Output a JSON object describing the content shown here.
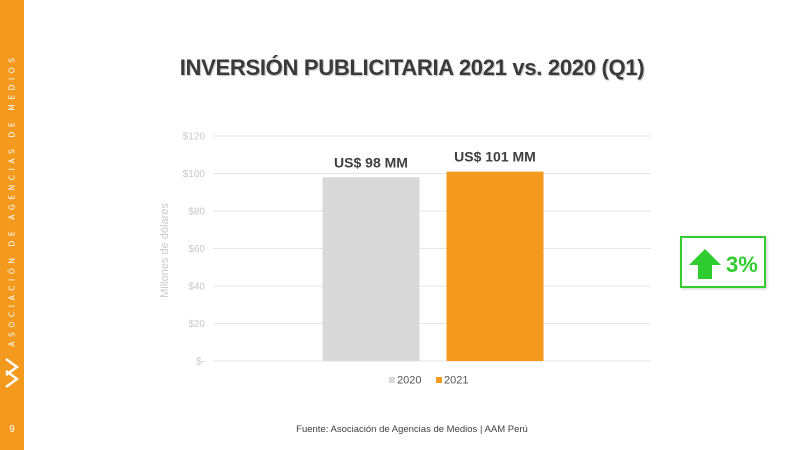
{
  "sidebar": {
    "org_name": "ASOCIACIÓN DE AGENCIAS DE MEDIOS",
    "page_number": "9",
    "logo_icon": "aam-chevron-logo-icon"
  },
  "colors": {
    "brand_orange": "#f39a1e",
    "bar_2020": "#d9d9d9",
    "bar_2021": "#f39a1e",
    "growth_green": "#2ecc2e"
  },
  "growth": {
    "value": "3%",
    "icon": "arrow-up-icon"
  },
  "source": "Fuente: Asociación de Agencias de Medios | AAM Perú",
  "chart_data": {
    "type": "bar",
    "title": "INVERSIÓN PUBLICITARIA 2021 vs. 2020 (Q1)",
    "ylabel": "Millones de dólares",
    "xlabel": "",
    "ylim": [
      0,
      120
    ],
    "yticks": [
      0,
      20,
      40,
      60,
      80,
      100,
      120
    ],
    "ytick_labels": [
      "$-",
      "$20",
      "$40",
      "$60",
      "$80",
      "$100",
      "$120"
    ],
    "grid": true,
    "legend_position": "bottom",
    "series": [
      {
        "name": "2020",
        "values": [
          98
        ],
        "label": "US$ 98 MM",
        "color": "#d9d9d9"
      },
      {
        "name": "2021",
        "values": [
          101
        ],
        "label": "US$ 101 MM",
        "color": "#f39a1e"
      }
    ]
  }
}
